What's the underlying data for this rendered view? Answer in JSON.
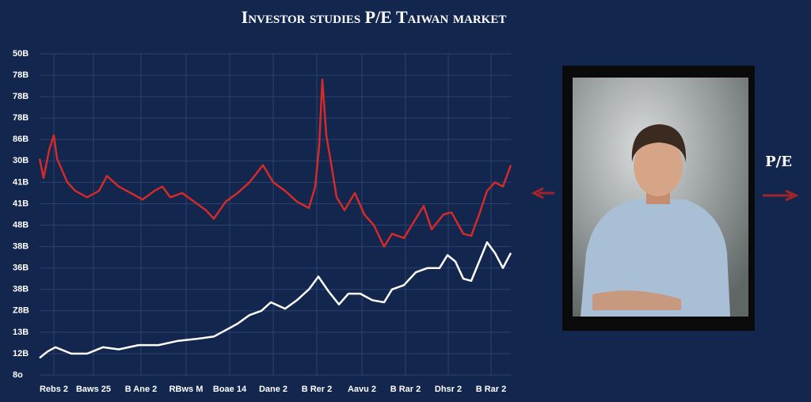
{
  "chart_data": {
    "type": "line",
    "title": "Investor studies P/E Taiwan market",
    "xlim": [
      0,
      595
    ],
    "xticks": [
      {
        "value": 18,
        "label": "Rebs 2"
      },
      {
        "value": 68,
        "label": "Baws 25"
      },
      {
        "value": 128,
        "label": "B Ane 2"
      },
      {
        "value": 185,
        "label": "RBws M"
      },
      {
        "value": 240,
        "label": "Boae 14"
      },
      {
        "value": 295,
        "label": "Dane 2"
      },
      {
        "value": 350,
        "label": "B Rer 2"
      },
      {
        "value": 407,
        "label": "Aavu 2"
      },
      {
        "value": 462,
        "label": "B Rar 2"
      },
      {
        "value": 516,
        "label": "Dhsr 2"
      },
      {
        "value": 570,
        "label": "B Rar 2"
      }
    ],
    "ylim": [
      0,
      15
    ],
    "yticks": [
      {
        "value": 0,
        "label": "8o"
      },
      {
        "value": 1,
        "label": "12B"
      },
      {
        "value": 2,
        "label": "13B"
      },
      {
        "value": 3,
        "label": "Z8B"
      },
      {
        "value": 4,
        "label": "38B"
      },
      {
        "value": 5,
        "label": "36B"
      },
      {
        "value": 6,
        "label": "38B"
      },
      {
        "value": 7,
        "label": "48B"
      },
      {
        "value": 8,
        "label": "41B"
      },
      {
        "value": 9,
        "label": "41B"
      },
      {
        "value": 10,
        "label": "30B"
      },
      {
        "value": 11,
        "label": "86B"
      },
      {
        "value": 12,
        "label": "78B"
      },
      {
        "value": 13,
        "label": "78B"
      },
      {
        "value": 14,
        "label": "78B"
      },
      {
        "value": 15,
        "label": "50B"
      }
    ],
    "grid": true,
    "series": [
      {
        "color": "#d42a2a",
        "x": [
          0,
          5,
          12,
          18,
          22,
          28,
          35,
          45,
          60,
          75,
          85,
          100,
          115,
          130,
          145,
          155,
          165,
          180,
          195,
          210,
          220,
          235,
          250,
          265,
          282,
          295,
          310,
          325,
          340,
          348,
          353,
          357,
          362,
          368,
          375,
          385,
          398,
          410,
          422,
          435,
          445,
          460,
          475,
          485,
          495,
          510,
          520,
          535,
          545,
          555,
          565,
          575,
          585,
          595
        ],
        "values": [
          10.1,
          9.2,
          10.5,
          11.2,
          10.1,
          9.6,
          9.0,
          8.6,
          8.3,
          8.6,
          9.3,
          8.8,
          8.5,
          8.2,
          8.6,
          8.8,
          8.3,
          8.5,
          8.1,
          7.7,
          7.3,
          8.1,
          8.5,
          9.0,
          9.8,
          9.0,
          8.6,
          8.1,
          7.8,
          8.8,
          10.7,
          13.8,
          11.2,
          9.9,
          8.3,
          7.7,
          8.5,
          7.5,
          7.0,
          6.0,
          6.6,
          6.4,
          7.3,
          7.9,
          6.8,
          7.5,
          7.6,
          6.6,
          6.5,
          7.5,
          8.6,
          9.0,
          8.8,
          9.8
        ]
      },
      {
        "color": "#ffffff",
        "x": [
          0,
          10,
          20,
          40,
          60,
          80,
          100,
          125,
          150,
          175,
          200,
          220,
          235,
          250,
          265,
          280,
          292,
          310,
          325,
          340,
          352,
          365,
          378,
          390,
          405,
          420,
          435,
          445,
          460,
          475,
          490,
          505,
          515,
          525,
          535,
          545,
          555,
          565,
          575,
          585,
          595
        ],
        "values": [
          0.8,
          1.1,
          1.3,
          1.0,
          1.0,
          1.3,
          1.2,
          1.4,
          1.4,
          1.6,
          1.7,
          1.8,
          2.1,
          2.4,
          2.8,
          3.0,
          3.4,
          3.1,
          3.5,
          4.0,
          4.6,
          3.9,
          3.3,
          3.8,
          3.8,
          3.5,
          3.4,
          4.0,
          4.2,
          4.8,
          5.0,
          5.0,
          5.6,
          5.3,
          4.5,
          4.4,
          5.3,
          6.2,
          5.7,
          5.0,
          5.7
        ]
      }
    ]
  },
  "side_label": "P/E"
}
